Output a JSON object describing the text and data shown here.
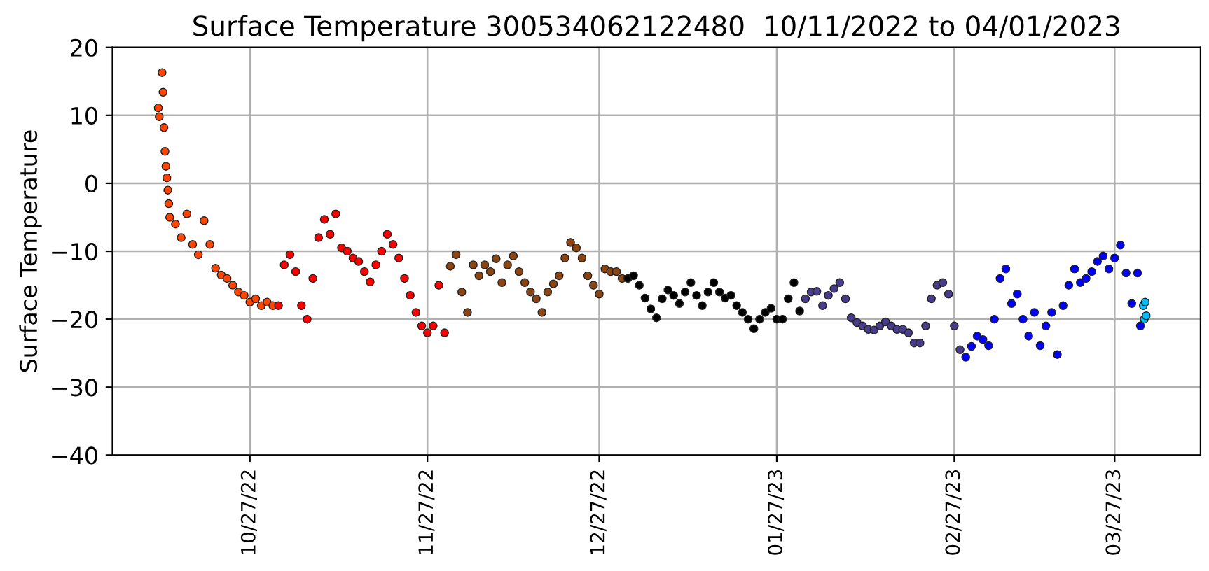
{
  "chart_data": {
    "type": "scatter",
    "title": "Surface Temperature 300534062122480  10/11/2022 to 04/01/2023",
    "ylabel": "Surface Temperature",
    "xlim": [
      "2022-10-03",
      "2023-04-11"
    ],
    "ylim": [
      -40,
      20
    ],
    "xticks": [
      {
        "value": "2022-10-27",
        "label": "10/27/22"
      },
      {
        "value": "2022-11-27",
        "label": "11/27/22"
      },
      {
        "value": "2022-12-27",
        "label": "12/27/22"
      },
      {
        "value": "2023-01-27",
        "label": "01/27/23"
      },
      {
        "value": "2023-02-27",
        "label": "02/27/23"
      },
      {
        "value": "2023-03-27",
        "label": "03/27/23"
      }
    ],
    "yticks": [
      {
        "value": -40,
        "label": "−40"
      },
      {
        "value": -30,
        "label": "−30"
      },
      {
        "value": -20,
        "label": "−20"
      },
      {
        "value": -10,
        "label": "−10"
      },
      0,
      10,
      20
    ],
    "grid": true,
    "marker": "circle",
    "series": [
      {
        "color": "#ff4500",
        "x": [
          "2022-10-11T00:00",
          "2022-10-11T04:00",
          "2022-10-11T16:00",
          "2022-10-11T20:00",
          "2022-10-12T00:00",
          "2022-10-12T04:00",
          "2022-10-12T08:00",
          "2022-10-12T12:00",
          "2022-10-12T16:00",
          "2022-10-12T20:00",
          "2022-10-13",
          "2022-10-14",
          "2022-10-15",
          "2022-10-16",
          "2022-10-17",
          "2022-10-18",
          "2022-10-19",
          "2022-10-20",
          "2022-10-21",
          "2022-10-22",
          "2022-10-23",
          "2022-10-24",
          "2022-10-25",
          "2022-10-26",
          "2022-10-27",
          "2022-10-28",
          "2022-10-29",
          "2022-10-30",
          "2022-10-31"
        ],
        "values": [
          11.1,
          9.8,
          16.3,
          13.4,
          8.2,
          4.7,
          2.5,
          0.8,
          -1,
          -3,
          -5,
          -6,
          -8,
          -4.5,
          -9,
          -10.5,
          -5.5,
          -9,
          -12.5,
          -13.5,
          -14,
          -15,
          -16,
          -16.5,
          -17.5,
          -17,
          -18,
          -17.5,
          -18
        ]
      },
      {
        "color": "#ff0000",
        "x": [
          "2022-11-01",
          "2022-11-02",
          "2022-11-03",
          "2022-11-04",
          "2022-11-05",
          "2022-11-06",
          "2022-11-07",
          "2022-11-08",
          "2022-11-09",
          "2022-11-10",
          "2022-11-11",
          "2022-11-12",
          "2022-11-13",
          "2022-11-14",
          "2022-11-15",
          "2022-11-16",
          "2022-11-17",
          "2022-11-18",
          "2022-11-19",
          "2022-11-20",
          "2022-11-21",
          "2022-11-22",
          "2022-11-23",
          "2022-11-24",
          "2022-11-25",
          "2022-11-26",
          "2022-11-27",
          "2022-11-28",
          "2022-11-29",
          "2022-11-30"
        ],
        "values": [
          -18,
          -12,
          -10.5,
          -13,
          -18,
          -20,
          -14,
          -8,
          -5.3,
          -7.5,
          -4.5,
          -9.5,
          -10,
          -11,
          -11.5,
          -13,
          -14.5,
          -12,
          -10,
          -7.5,
          -9,
          -11,
          -14,
          -16.5,
          -19,
          -21,
          -22,
          -21,
          -15,
          -22
        ]
      },
      {
        "color": "#8b4513",
        "x": [
          "2022-12-01",
          "2022-12-02",
          "2022-12-03",
          "2022-12-04",
          "2022-12-05",
          "2022-12-06",
          "2022-12-07",
          "2022-12-08",
          "2022-12-09",
          "2022-12-10",
          "2022-12-11",
          "2022-12-12",
          "2022-12-13",
          "2022-12-14",
          "2022-12-15",
          "2022-12-16",
          "2022-12-17",
          "2022-12-18",
          "2022-12-19",
          "2022-12-20",
          "2022-12-21",
          "2022-12-22",
          "2022-12-23",
          "2022-12-24",
          "2022-12-25",
          "2022-12-26",
          "2022-12-27",
          "2022-12-28",
          "2022-12-29",
          "2022-12-30",
          "2022-12-31"
        ],
        "values": [
          -12.2,
          -10.5,
          -16,
          -19,
          -12,
          -13.6,
          -12,
          -13,
          -11.1,
          -14.6,
          -12,
          -10.7,
          -13,
          -14.6,
          -16,
          -17,
          -19,
          -16,
          -14.8,
          -13.6,
          -11,
          -8.7,
          -9.5,
          -11,
          -13.6,
          -15,
          -16.3,
          -12.6,
          -13,
          -13,
          -14
        ]
      },
      {
        "color": "#000000",
        "x": [
          "2023-01-01",
          "2023-01-02",
          "2023-01-03",
          "2023-01-04",
          "2023-01-05",
          "2023-01-06",
          "2023-01-07",
          "2023-01-08",
          "2023-01-09",
          "2023-01-10",
          "2023-01-11",
          "2023-01-12",
          "2023-01-13",
          "2023-01-14",
          "2023-01-15",
          "2023-01-16",
          "2023-01-17",
          "2023-01-18",
          "2023-01-19",
          "2023-01-20",
          "2023-01-21",
          "2023-01-22",
          "2023-01-23",
          "2023-01-24",
          "2023-01-25",
          "2023-01-26",
          "2023-01-27",
          "2023-01-28",
          "2023-01-29",
          "2023-01-30",
          "2023-01-31"
        ],
        "values": [
          -14,
          -13.6,
          -15,
          -16.9,
          -18.5,
          -19.8,
          -17,
          -15.7,
          -16.5,
          -17.7,
          -16,
          -14.6,
          -16.5,
          -18,
          -16,
          -14.6,
          -16,
          -16.9,
          -16.5,
          -18,
          -19,
          -20,
          -21.4,
          -20,
          -19,
          -18.4,
          -20,
          -20,
          -17,
          -14.6,
          -18.8
        ]
      },
      {
        "color": "#483d8b",
        "x": [
          "2023-02-01",
          "2023-02-02",
          "2023-02-03",
          "2023-02-04",
          "2023-02-05",
          "2023-02-06",
          "2023-02-07",
          "2023-02-08",
          "2023-02-09",
          "2023-02-10",
          "2023-02-11",
          "2023-02-12",
          "2023-02-13",
          "2023-02-14",
          "2023-02-15",
          "2023-02-16",
          "2023-02-17",
          "2023-02-18",
          "2023-02-19",
          "2023-02-20",
          "2023-02-21",
          "2023-02-22",
          "2023-02-23",
          "2023-02-24",
          "2023-02-25",
          "2023-02-26",
          "2023-02-27",
          "2023-02-28"
        ],
        "values": [
          -17,
          -16,
          -15.9,
          -18,
          -16.5,
          -15.5,
          -14.6,
          -17,
          -19.8,
          -20.5,
          -21,
          -21.5,
          -21.6,
          -21,
          -20.4,
          -21,
          -21.5,
          -21.5,
          -22,
          -23.5,
          -23.5,
          -21,
          -17,
          -15,
          -14.6,
          -16.3,
          -21,
          -24.5
        ]
      },
      {
        "color": "#0000ff",
        "x": [
          "2023-03-01",
          "2023-03-02",
          "2023-03-03",
          "2023-03-04",
          "2023-03-05",
          "2023-03-06",
          "2023-03-07",
          "2023-03-08",
          "2023-03-09",
          "2023-03-10",
          "2023-03-11",
          "2023-03-12",
          "2023-03-13",
          "2023-03-14",
          "2023-03-15",
          "2023-03-16",
          "2023-03-17",
          "2023-03-18",
          "2023-03-19",
          "2023-03-20",
          "2023-03-21",
          "2023-03-22",
          "2023-03-23",
          "2023-03-24",
          "2023-03-25",
          "2023-03-26",
          "2023-03-27",
          "2023-03-28",
          "2023-03-29",
          "2023-03-30",
          "2023-03-31",
          "2023-03-31T12:00"
        ],
        "values": [
          -25.6,
          -24,
          -22.5,
          -23,
          -23.9,
          -20,
          -14,
          -12.6,
          -17.7,
          -16.3,
          -20,
          -22.5,
          -19,
          -23.9,
          -21,
          -19,
          -25.2,
          -18,
          -15,
          -12.6,
          -14.6,
          -14,
          -13,
          -11.5,
          -10.7,
          -12.6,
          -11,
          -9.1,
          -13.2,
          -17.7,
          -13.2,
          -21
        ]
      },
      {
        "color": "#00bfff",
        "x": [
          "2023-04-01T00:00",
          "2023-04-01T04:00",
          "2023-04-01T08:00",
          "2023-04-01T12:00"
        ],
        "values": [
          -18,
          -20,
          -17.5,
          -19.5
        ]
      }
    ]
  }
}
